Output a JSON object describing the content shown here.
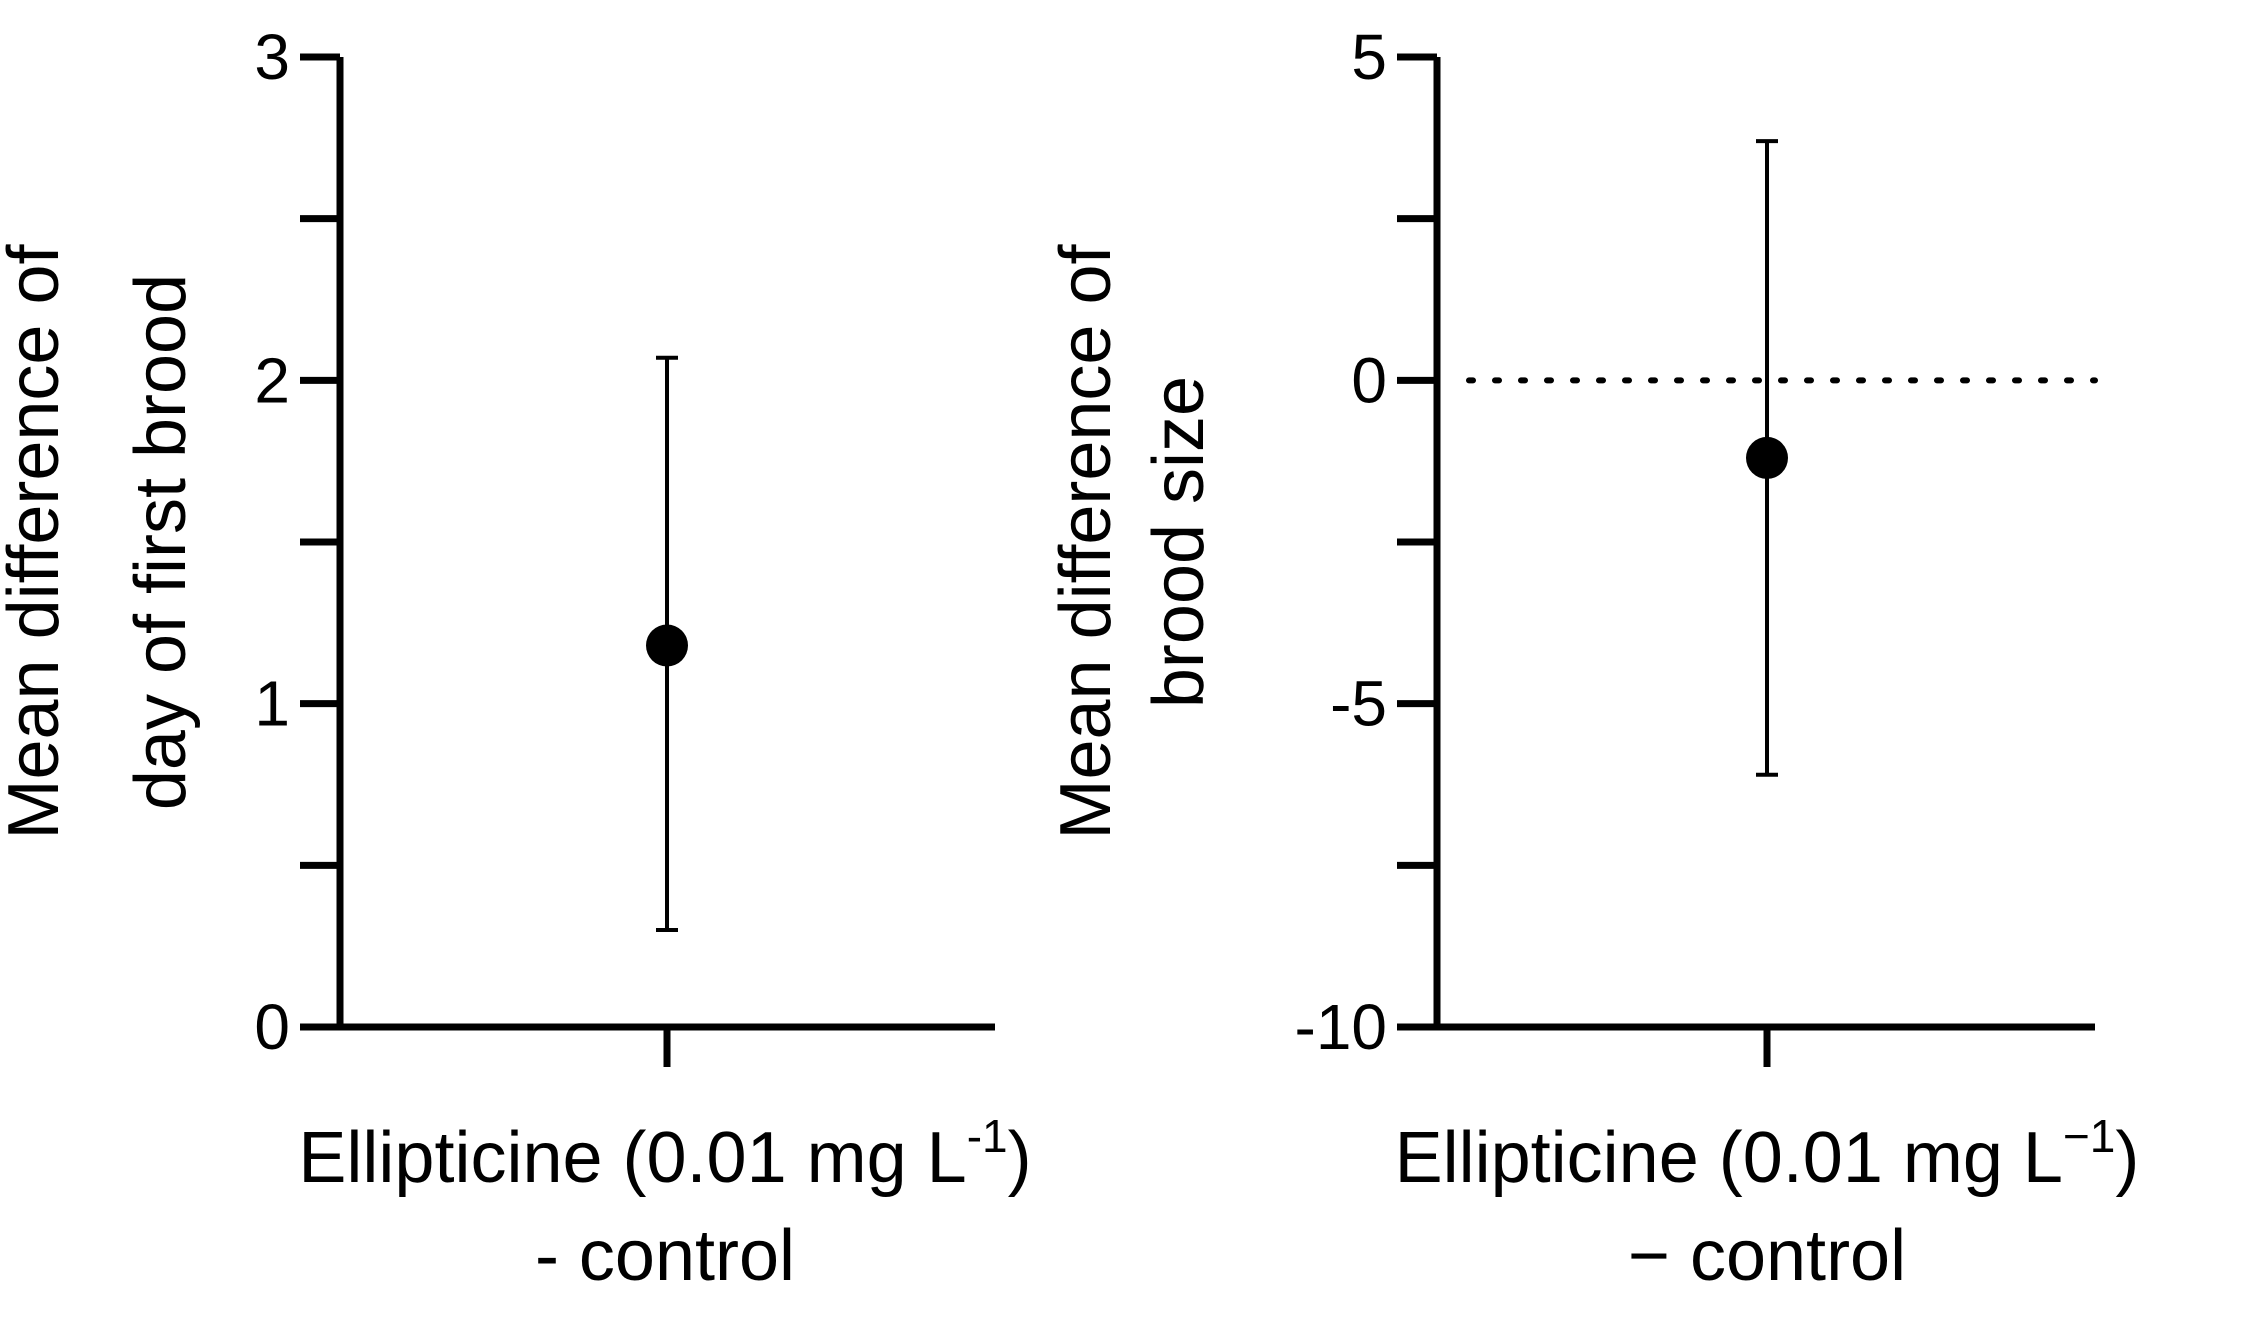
{
  "chart_data": [
    {
      "type": "scatter",
      "ylabel": [
        "Mean difference of",
        "day of first brood"
      ],
      "xlabel": [
        "Ellipticine (0.01 mg L",
        "-1",
        ")",
        "- control"
      ],
      "categories": [
        "Ellipticine (0.01 mg L-1) - control"
      ],
      "ylim": [
        0,
        3
      ],
      "yticks": [
        0,
        0.5,
        1,
        1.5,
        2,
        2.5,
        3
      ],
      "ytick_labels": [
        "0",
        "1",
        "2",
        "3"
      ],
      "ytick_label_values": [
        0,
        1,
        2,
        3
      ],
      "series": [
        {
          "values": [
            1.18
          ],
          "ci_low": [
            0.3
          ],
          "ci_high": [
            2.07
          ]
        }
      ],
      "reference_line": null,
      "grid": false,
      "legend": "none"
    },
    {
      "type": "scatter",
      "ylabel": [
        "Mean difference of",
        "brood size"
      ],
      "xlabel": [
        "Ellipticine (0.01 mg L",
        "−1",
        ")",
        "− control"
      ],
      "categories": [
        "Ellipticine (0.01 mg L−1) − control"
      ],
      "ylim": [
        -10,
        5
      ],
      "yticks": [
        -10,
        -7.5,
        -5,
        -2.5,
        0,
        2.5,
        5
      ],
      "ytick_labels": [
        "-10",
        "-5",
        "0",
        "5"
      ],
      "ytick_label_values": [
        -10,
        -5,
        0,
        5
      ],
      "series": [
        {
          "values": [
            -1.2
          ],
          "ci_low": [
            -6.1
          ],
          "ci_high": [
            3.7
          ]
        }
      ],
      "reference_line": 0,
      "grid": false,
      "legend": "none"
    }
  ]
}
